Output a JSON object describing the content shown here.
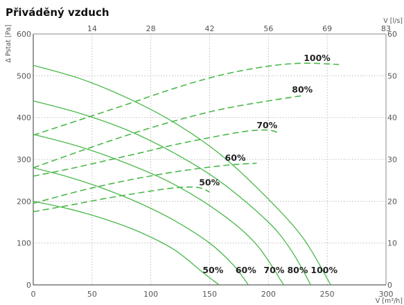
{
  "chart_data": {
    "type": "line",
    "title": "Přiváděný vzduch",
    "ylabel": "Δ Pstat [Pa]",
    "xlabel": "V [m³/h]",
    "x2label": "V [l/s]",
    "xlim": [
      0,
      300
    ],
    "ylim": [
      0,
      600
    ],
    "x_ticks": [
      "0",
      "50",
      "100",
      "150",
      "200",
      "250",
      "300"
    ],
    "y_ticks": [
      "0",
      "100",
      "200",
      "300",
      "400",
      "500",
      "600"
    ],
    "top_ticks": [
      {
        "label": "14",
        "x": 50
      },
      {
        "label": "28",
        "x": 100
      },
      {
        "label": "42",
        "x": 150
      },
      {
        "label": "56",
        "x": 200
      },
      {
        "label": "69",
        "x": 250
      },
      {
        "label": "83",
        "x": 300
      }
    ],
    "right_ticks": [
      {
        "label": "0",
        "y": 0
      },
      {
        "label": "10",
        "y": 100
      },
      {
        "label": "20",
        "y": 200
      },
      {
        "label": "30",
        "y": 300
      },
      {
        "label": "40",
        "y": 400
      },
      {
        "label": "50",
        "y": 500
      },
      {
        "label": "60",
        "y": 600
      }
    ],
    "grid": true,
    "colors": {
      "curve": "#4ab84a",
      "grid": "#bbbbbb"
    },
    "pressure_curves": [
      {
        "name": "50%",
        "x": [
          0,
          30,
          60,
          90,
          120,
          145,
          158
        ],
        "y": [
          200,
          182,
          158,
          127,
          84,
          28,
          0
        ]
      },
      {
        "name": "60%",
        "x": [
          0,
          30,
          60,
          90,
          120,
          150,
          170,
          183
        ],
        "y": [
          280,
          258,
          230,
          196,
          154,
          100,
          48,
          0
        ]
      },
      {
        "name": "70%",
        "x": [
          0,
          40,
          80,
          120,
          160,
          190,
          213
        ],
        "y": [
          360,
          330,
          290,
          240,
          170,
          96,
          0
        ]
      },
      {
        "name": "80%",
        "x": [
          0,
          40,
          80,
          120,
          160,
          200,
          220,
          236
        ],
        "y": [
          440,
          410,
          370,
          315,
          245,
          150,
          80,
          0
        ]
      },
      {
        "name": "100%",
        "x": [
          0,
          40,
          80,
          120,
          160,
          200,
          230,
          253
        ],
        "y": [
          525,
          493,
          447,
          388,
          310,
          205,
          110,
          0
        ]
      }
    ],
    "power_curves": [
      {
        "name": "50%",
        "x": [
          0,
          30,
          60,
          90,
          120,
          140,
          150
        ],
        "y": [
          175,
          190,
          206,
          220,
          232,
          233,
          222
        ]
      },
      {
        "name": "60%",
        "x": [
          0,
          40,
          80,
          120,
          160,
          190
        ],
        "y": [
          195,
          225,
          250,
          270,
          285,
          291
        ]
      },
      {
        "name": "70%",
        "x": [
          0,
          30,
          60,
          90,
          120,
          150,
          180,
          200,
          210
        ],
        "y": [
          260,
          277,
          296,
          315,
          335,
          352,
          367,
          370,
          362
        ]
      },
      {
        "name": "80%",
        "x": [
          0,
          40,
          80,
          120,
          160,
          200,
          230
        ],
        "y": [
          280,
          320,
          358,
          392,
          420,
          440,
          453
        ]
      },
      {
        "name": "100%",
        "x": [
          0,
          40,
          80,
          120,
          160,
          200,
          230,
          260
        ],
        "y": [
          358,
          395,
          432,
          470,
          502,
          523,
          530,
          527
        ]
      }
    ],
    "power_labels": [
      {
        "text": "100%",
        "x": 230,
        "y": 535
      },
      {
        "text": "80%",
        "x": 220,
        "y": 460
      },
      {
        "text": "70%",
        "x": 190,
        "y": 375
      },
      {
        "text": "60%",
        "x": 163,
        "y": 297
      },
      {
        "text": "50%",
        "x": 141,
        "y": 238
      }
    ],
    "pressure_labels": [
      {
        "text": "50%",
        "x": 144,
        "y": 28
      },
      {
        "text": "60%",
        "x": 172,
        "y": 28
      },
      {
        "text": "70%",
        "x": 196,
        "y": 28
      },
      {
        "text": "80%",
        "x": 216,
        "y": 28
      },
      {
        "text": "100%",
        "x": 236,
        "y": 28
      }
    ]
  }
}
